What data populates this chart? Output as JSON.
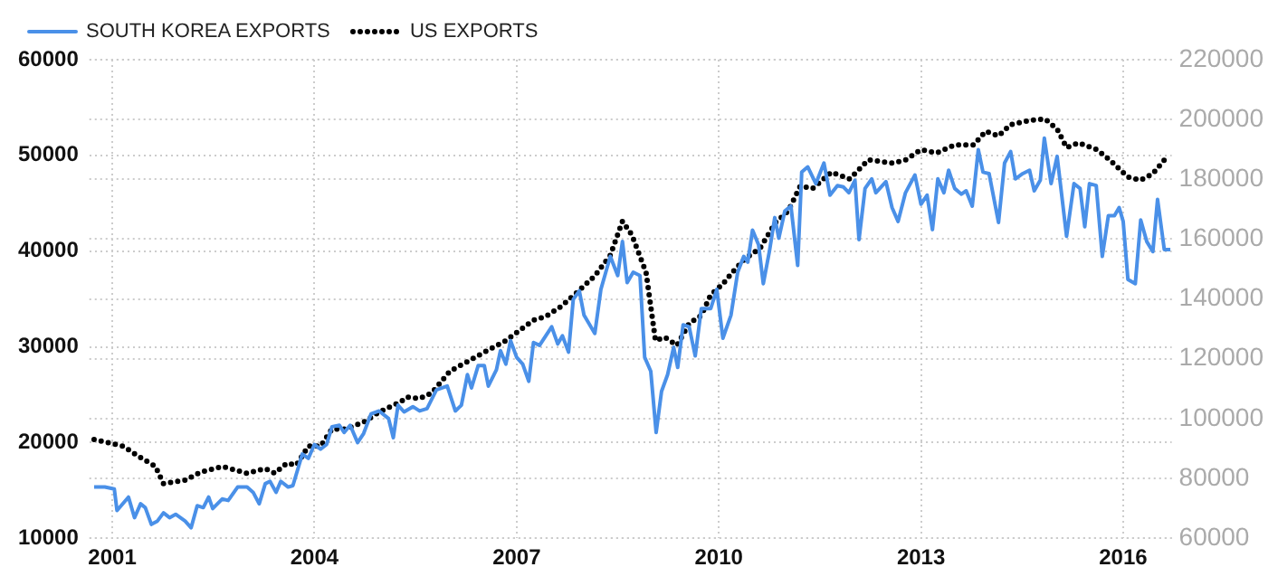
{
  "chart_data": {
    "type": "line",
    "legend": "top left",
    "grid": true,
    "marker": "none",
    "xlim": [
      2000.66,
      2016.72
    ],
    "xticks": [
      2001,
      2004,
      2007,
      2010,
      2013,
      2016
    ],
    "ylim": [
      10000,
      60000
    ],
    "yticks": [
      10000,
      20000,
      30000,
      40000,
      50000,
      60000
    ],
    "y2lim": [
      60000,
      220000
    ],
    "y2ticks": [
      60000,
      80000,
      100000,
      120000,
      140000,
      160000,
      180000,
      200000,
      220000
    ],
    "series": [
      {
        "name": "SOUTH KOREA EXPORTS",
        "color": "#4a90e8",
        "line_style": "solid",
        "x": [
          2000.73,
          2000.89,
          2001.03,
          2001.07,
          2001.24,
          2001.33,
          2001.42,
          2001.49,
          2001.58,
          2001.67,
          2001.76,
          2001.85,
          2001.94,
          2002.08,
          2002.17,
          2002.26,
          2002.35,
          2002.43,
          2002.49,
          2002.63,
          2002.72,
          2002.86,
          2003.0,
          2003.09,
          2003.18,
          2003.27,
          2003.34,
          2003.43,
          2003.5,
          2003.61,
          2003.68,
          2003.82,
          2003.91,
          2004.0,
          2004.09,
          2004.18,
          2004.26,
          2004.37,
          2004.44,
          2004.53,
          2004.64,
          2004.73,
          2004.84,
          2004.96,
          2005.1,
          2005.17,
          2005.24,
          2005.33,
          2005.46,
          2005.56,
          2005.67,
          2005.81,
          2005.97,
          2006.09,
          2006.18,
          2006.27,
          2006.33,
          2006.43,
          2006.52,
          2006.58,
          2006.7,
          2006.76,
          2006.84,
          2006.91,
          2007.0,
          2007.09,
          2007.18,
          2007.25,
          2007.34,
          2007.52,
          2007.61,
          2007.68,
          2007.77,
          2007.84,
          2007.93,
          2008.0,
          2008.16,
          2008.25,
          2008.39,
          2008.5,
          2008.57,
          2008.64,
          2008.73,
          2008.83,
          2008.9,
          2008.99,
          2009.07,
          2009.15,
          2009.24,
          2009.33,
          2009.39,
          2009.47,
          2009.56,
          2009.65,
          2009.74,
          2009.88,
          2009.97,
          2010.06,
          2010.18,
          2010.28,
          2010.37,
          2010.43,
          2010.5,
          2010.59,
          2010.66,
          2010.75,
          2010.83,
          2010.89,
          2010.98,
          2011.07,
          2011.17,
          2011.23,
          2011.32,
          2011.44,
          2011.56,
          2011.65,
          2011.76,
          2011.85,
          2011.93,
          2012.02,
          2012.08,
          2012.17,
          2012.27,
          2012.33,
          2012.48,
          2012.57,
          2012.66,
          2012.77,
          2012.91,
          2013.0,
          2013.09,
          2013.17,
          2013.25,
          2013.34,
          2013.41,
          2013.5,
          2013.6,
          2013.67,
          2013.76,
          2013.85,
          2013.92,
          2014.01,
          2014.15,
          2014.24,
          2014.33,
          2014.4,
          2014.51,
          2014.61,
          2014.68,
          2014.77,
          2014.83,
          2014.93,
          2015.02,
          2015.16,
          2015.27,
          2015.36,
          2015.43,
          2015.5,
          2015.6,
          2015.69,
          2015.78,
          2015.87,
          2015.94,
          2016.0,
          2016.07,
          2016.18,
          2016.26,
          2016.35,
          2016.44,
          2016.51,
          2016.61,
          2016.7
        ],
        "values": [
          15350,
          15350,
          15150,
          12900,
          14300,
          12150,
          13600,
          13200,
          11450,
          11800,
          12650,
          12150,
          12500,
          11800,
          11100,
          13400,
          13200,
          14300,
          13100,
          14100,
          13950,
          15350,
          15350,
          14800,
          13600,
          15700,
          15950,
          14800,
          15950,
          15350,
          15500,
          18800,
          18350,
          19800,
          19300,
          19800,
          21650,
          21800,
          21050,
          21800,
          20000,
          20950,
          23000,
          23300,
          22500,
          20500,
          23900,
          23200,
          23750,
          23300,
          23550,
          25500,
          25900,
          23300,
          23900,
          27100,
          25700,
          28050,
          28050,
          25900,
          27600,
          29600,
          28200,
          30650,
          28900,
          28200,
          26400,
          30450,
          30150,
          32100,
          30300,
          31150,
          29450,
          34950,
          35850,
          33300,
          31400,
          36000,
          39450,
          37450,
          41000,
          36700,
          37800,
          37450,
          28900,
          27450,
          21050,
          25350,
          27100,
          29950,
          27850,
          32300,
          32100,
          29050,
          34000,
          34000,
          36000,
          30900,
          33300,
          37800,
          39450,
          38850,
          42200,
          40650,
          36600,
          39950,
          43500,
          41350,
          44200,
          44700,
          38500,
          48250,
          48800,
          47050,
          49200,
          45850,
          46850,
          46700,
          46100,
          47400,
          41200,
          46550,
          47550,
          46100,
          47250,
          44550,
          43100,
          46100,
          47950,
          44900,
          45850,
          42250,
          47550,
          46100,
          48450,
          46550,
          45950,
          46300,
          44700,
          50600,
          48250,
          48100,
          43000,
          49200,
          50400,
          47550,
          48100,
          48450,
          46300,
          47400,
          51800,
          47050,
          49900,
          41550,
          47050,
          46550,
          42550,
          47050,
          46850,
          39450,
          43700,
          43700,
          44550,
          43100,
          37050,
          36600,
          43250,
          41000,
          39950,
          45400,
          40150,
          40150
        ]
      },
      {
        "name": "US EXPORTS",
        "color": "#000000",
        "line_style": "dotted",
        "axis": "y2",
        "x": [
          2000.73,
          2001.16,
          2001.39,
          2001.64,
          2001.76,
          2002.08,
          2002.31,
          2002.63,
          2003.0,
          2003.27,
          2003.41,
          2003.59,
          2003.73,
          2003.91,
          2004.09,
          2004.26,
          2004.46,
          2004.73,
          2004.96,
          2005.28,
          2005.37,
          2005.56,
          2005.74,
          2006.01,
          2006.29,
          2006.52,
          2006.84,
          2007.02,
          2007.25,
          2007.43,
          2007.66,
          2007.89,
          2008.16,
          2008.39,
          2008.57,
          2008.71,
          2008.92,
          2009.06,
          2009.2,
          2009.38,
          2009.56,
          2009.74,
          2009.88,
          2010.06,
          2010.2,
          2010.39,
          2010.61,
          2010.84,
          2011.03,
          2011.21,
          2011.39,
          2011.67,
          2011.94,
          2012.22,
          2012.59,
          2012.77,
          2013.0,
          2013.23,
          2013.5,
          2013.78,
          2013.96,
          2014.15,
          2014.33,
          2014.61,
          2014.84,
          2015.02,
          2015.16,
          2015.34,
          2015.61,
          2015.8,
          2016.07,
          2016.26,
          2016.44,
          2016.63
        ],
        "values": [
          93000,
          90800,
          87400,
          84000,
          78250,
          79400,
          82100,
          84000,
          81700,
          83300,
          81700,
          85100,
          84400,
          90800,
          90800,
          96500,
          96500,
          98800,
          102200,
          105600,
          107200,
          106700,
          108600,
          115850,
          119300,
          122200,
          126100,
          129100,
          132900,
          134100,
          137500,
          142050,
          147750,
          154600,
          166000,
          161400,
          148900,
          126100,
          127200,
          124500,
          131800,
          134500,
          141400,
          145000,
          148900,
          153500,
          156900,
          165500,
          169400,
          177800,
          176900,
          182400,
          180100,
          186500,
          185400,
          186500,
          189900,
          188800,
          191500,
          191500,
          196100,
          194500,
          198300,
          199700,
          200200,
          196800,
          190600,
          192200,
          189900,
          186500,
          180800,
          179700,
          181900,
          187000
        ]
      }
    ]
  }
}
